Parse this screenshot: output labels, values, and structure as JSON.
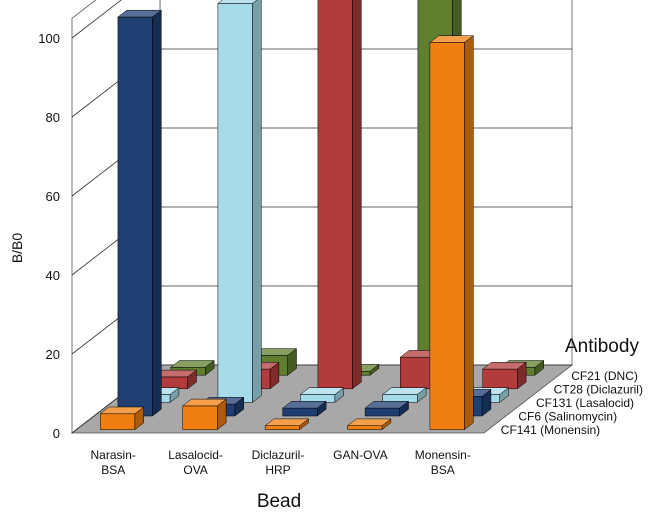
{
  "chart_data": {
    "type": "bar",
    "variant": "3d-grouped",
    "ylabel": "B/B0",
    "xlabel": "Bead",
    "zlabel": "Antibody",
    "ylim": [
      0,
      100
    ],
    "yticks": [
      "0",
      "20",
      "40",
      "60",
      "80",
      "100"
    ],
    "grid": true,
    "categories": [
      [
        "Narasin-",
        "BSA"
      ],
      [
        "Lasalocid-",
        "OVA"
      ],
      [
        "Diclazuril-",
        "HRP"
      ],
      [
        "GAN-OVA"
      ],
      [
        "Monensin-",
        "BSA"
      ]
    ],
    "series": [
      {
        "name": "CF141 (Monensin)",
        "color": "#f07f10",
        "values": [
          4,
          6,
          1,
          1,
          98
        ]
      },
      {
        "name": "CF6 (Salinomycin)",
        "color": "#1f3f73",
        "values": [
          101,
          3,
          2,
          2,
          5
        ]
      },
      {
        "name": "CF131 (Lasalocid)",
        "color": "#a6dbe9",
        "values": [
          2,
          101,
          2,
          2,
          2
        ]
      },
      {
        "name": "CT28 (Diclazuril)",
        "color": "#b23c3c",
        "values": [
          3,
          5,
          101,
          8,
          5
        ]
      },
      {
        "name": "CF21 (DNC)",
        "color": "#5f7f2f",
        "values": [
          2,
          5,
          1,
          101,
          2
        ]
      }
    ]
  }
}
